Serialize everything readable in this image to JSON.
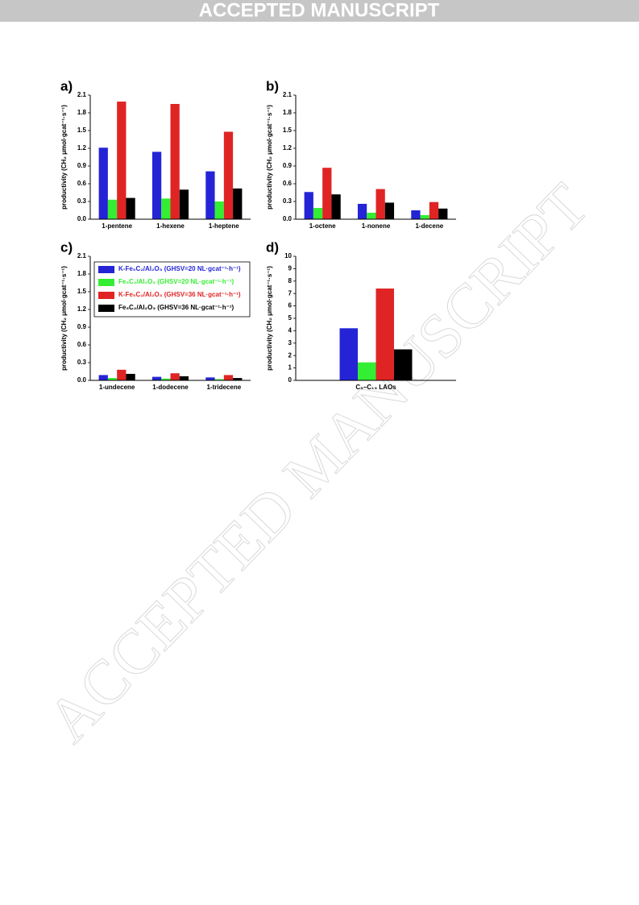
{
  "header": "ACCEPTED MANUSCRIPT",
  "watermark": "ACCEPTED MANUSCRIPT",
  "chart_data": [
    {
      "type": "bar",
      "title": "a)",
      "y_label": "productivity (CH₂ μmol·gcat⁻¹·s⁻¹)",
      "categories": [
        "1-pentene",
        "1-hexene",
        "1-heptene"
      ],
      "series": [
        {
          "color": "#2424d6",
          "values": [
            1.21,
            1.14,
            0.81
          ]
        },
        {
          "color": "#33ee33",
          "values": [
            0.33,
            0.35,
            0.3
          ]
        },
        {
          "color": "#e02424",
          "values": [
            1.99,
            1.95,
            1.48
          ]
        },
        {
          "color": "#000000",
          "values": [
            0.36,
            0.5,
            0.52
          ]
        }
      ],
      "ylim": [
        0,
        2.1
      ],
      "yticks": [
        {
          "value": 0,
          "label": "0.0"
        },
        0.3,
        0.6,
        0.9,
        1.2,
        1.5,
        1.8,
        2.1
      ]
    },
    {
      "type": "bar",
      "title": "b)",
      "y_label": "productivity (CH₂ μmol·gcat⁻¹·s⁻¹)",
      "categories": [
        "1-octene",
        "1-nonene",
        "1-decene"
      ],
      "series": [
        {
          "color": "#2424d6",
          "values": [
            0.46,
            0.26,
            0.15
          ]
        },
        {
          "color": "#33ee33",
          "values": [
            0.19,
            0.11,
            0.07
          ]
        },
        {
          "color": "#e02424",
          "values": [
            0.87,
            0.51,
            0.29
          ]
        },
        {
          "color": "#000000",
          "values": [
            0.42,
            0.28,
            0.18
          ]
        }
      ],
      "ylim": [
        0,
        2.1
      ],
      "yticks": [
        {
          "value": 0,
          "label": "0.0"
        },
        0.3,
        0.6,
        0.9,
        1.2,
        1.5,
        1.8,
        2.1
      ]
    },
    {
      "type": "bar",
      "title": "c)",
      "y_label": "productivity (CH₂ μmol·gcat⁻¹·s⁻¹)",
      "categories": [
        "1-undecene",
        "1-dodecene",
        "1-tridecene"
      ],
      "series": [
        {
          "name": "K-Fe₅C₂/Al₂O₃  (GHSV=20 NL·gcat⁻¹·h⁻¹)",
          "color": "#2424d6",
          "values": [
            0.09,
            0.06,
            0.05
          ]
        },
        {
          "name": "Fe₅C₂/Al₂O₃  (GHSV=20 NL·gcat⁻¹·h⁻¹)",
          "color": "#33ee33",
          "values": [
            0.04,
            0.03,
            0.02
          ]
        },
        {
          "name": "K-Fe₅C₂/Al₂O₃  (GHSV=36 NL·gcat⁻¹·h⁻¹)",
          "color": "#e02424",
          "values": [
            0.18,
            0.12,
            0.09
          ]
        },
        {
          "name": "Fe₅C₂/Al₂O₃  (GHSV=36 NL·gcat⁻¹·h⁻¹)",
          "color": "#000000",
          "values": [
            0.11,
            0.07,
            0.04
          ]
        }
      ],
      "ylim": [
        0,
        2.1
      ],
      "yticks": [
        {
          "value": 0,
          "label": "0.0"
        },
        0.3,
        0.6,
        0.9,
        1.2,
        1.5,
        1.8,
        2.1
      ],
      "legend": "top-left"
    },
    {
      "type": "bar",
      "title": "d)",
      "y_label": "productivity (CH₂ μmol·gcat⁻¹·s⁻¹)",
      "categories": [
        "C₅–C₁₃ LAOs"
      ],
      "series": [
        {
          "color": "#2424d6",
          "values": [
            4.2
          ]
        },
        {
          "color": "#33ee33",
          "values": [
            1.45
          ]
        },
        {
          "color": "#e02424",
          "values": [
            7.4
          ]
        },
        {
          "color": "#000000",
          "values": [
            2.5
          ]
        }
      ],
      "ylim": [
        0,
        10
      ],
      "yticks": [
        0,
        1,
        2,
        3,
        4,
        5,
        6,
        7,
        8,
        9,
        10
      ]
    }
  ]
}
